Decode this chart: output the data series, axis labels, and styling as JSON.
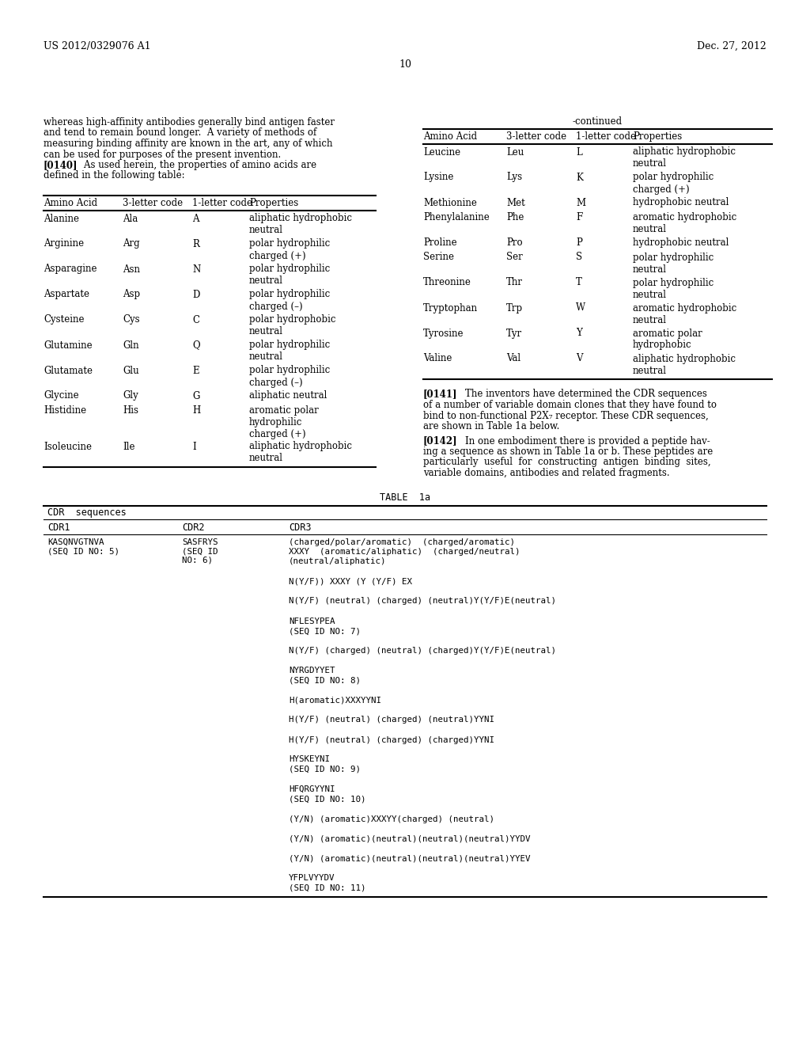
{
  "bg_color": "#ffffff",
  "text_color": "#000000",
  "header_left": "US 2012/0329076 A1",
  "header_right": "Dec. 27, 2012",
  "page_number": "10",
  "left_body_text": [
    "whereas high-affinity antibodies generally bind antigen faster",
    "and tend to remain bound longer.  A variety of methods of",
    "measuring binding affinity are known in the art, any of which",
    "can be used for purposes of the present invention."
  ],
  "left_body_text2": [
    "defined in the following table:"
  ],
  "para140_bold": "[0140]",
  "para140_rest": "    As used herein, the properties of amino acids are",
  "continued_label": "-continued",
  "left_table_headers": [
    "Amino Acid",
    "3-letter code",
    "1-letter code",
    "Properties"
  ],
  "left_table_rows": [
    [
      "Alanine",
      "Ala",
      "A",
      "aliphatic hydrophobic\nneutral"
    ],
    [
      "Arginine",
      "Arg",
      "R",
      "polar hydrophilic\ncharged (+)"
    ],
    [
      "Asparagine",
      "Asn",
      "N",
      "polar hydrophilic\nneutral"
    ],
    [
      "Aspartate",
      "Asp",
      "D",
      "polar hydrophilic\ncharged (–)"
    ],
    [
      "Cysteine",
      "Cys",
      "C",
      "polar hydrophobic\nneutral"
    ],
    [
      "Glutamine",
      "Gln",
      "Q",
      "polar hydrophilic\nneutral"
    ],
    [
      "Glutamate",
      "Glu",
      "E",
      "polar hydrophilic\ncharged (–)"
    ],
    [
      "Glycine",
      "Gly",
      "G",
      "aliphatic neutral"
    ],
    [
      "Histidine",
      "His",
      "H",
      "aromatic polar\nhydrophilic\ncharged (+)"
    ],
    [
      "Isoleucine",
      "Ile",
      "I",
      "aliphatic hydrophobic\nneutral"
    ]
  ],
  "right_table_headers": [
    "Amino Acid",
    "3-letter code",
    "1-letter code",
    "Properties"
  ],
  "right_table_rows": [
    [
      "Leucine",
      "Leu",
      "L",
      "aliphatic hydrophobic\nneutral"
    ],
    [
      "Lysine",
      "Lys",
      "K",
      "polar hydrophilic\ncharged (+)"
    ],
    [
      "Methionine",
      "Met",
      "M",
      "hydrophobic neutral"
    ],
    [
      "Phenylalanine",
      "Phe",
      "F",
      "aromatic hydrophobic\nneutral"
    ],
    [
      "Proline",
      "Pro",
      "P",
      "hydrophobic neutral"
    ],
    [
      "Serine",
      "Ser",
      "S",
      "polar hydrophilic\nneutral"
    ],
    [
      "Threonine",
      "Thr",
      "T",
      "polar hydrophilic\nneutral"
    ],
    [
      "Tryptophan",
      "Trp",
      "W",
      "aromatic hydrophobic\nneutral"
    ],
    [
      "Tyrosine",
      "Tyr",
      "Y",
      "aromatic polar\nhydrophobic"
    ],
    [
      "Valine",
      "Val",
      "V",
      "aliphatic hydrophobic\nneutral"
    ]
  ],
  "para_141_lines": [
    "[0141]    The inventors have determined the CDR sequences",
    "of a number of variable domain clones that they have found to",
    "bind to non-functional P2X₇ receptor. These CDR sequences,",
    "are shown in Table 1a below."
  ],
  "para_142_lines": [
    "[0142]    In one embodiment there is provided a peptide hav-",
    "ing a sequence as shown in Table 1a or b. These peptides are",
    "particularly  useful  for  constructing  antigen  binding  sites,",
    "variable domains, antibodies and related fragments."
  ],
  "table1a_title": "TABLE  1a",
  "table1a_subtitle": "CDR  sequences",
  "table1a_col_headers": [
    "CDR1",
    "CDR2",
    "CDR3"
  ],
  "table1a_row1_cdr1": "KASQNVGTNVA\n(SEQ ID NO: 5)",
  "table1a_row1_cdr2": "SASFRYS\n(SEQ ID\nNO: 6)",
  "table1a_row1_cdr3_lines": [
    "(charged/polar/aromatic)  (charged/aromatic)",
    "XXXY  (aromatic/aliphatic)  (charged/neutral)",
    "(neutral/aliphatic)",
    "",
    "N(Y/F)) XXXY (Y (Y/F) EX",
    "",
    "N(Y/F) (neutral) (charged) (neutral)Y(Y/F)E(neutral)",
    "",
    "NFLESYPEA",
    "(SEQ ID NO: 7)",
    "",
    "N(Y/F) (charged) (neutral) (charged)Y(Y/F)E(neutral)",
    "",
    "NYRGDYYET",
    "(SEQ ID NO: 8)",
    "",
    "H(aromatic)XXXYYNI",
    "",
    "H(Y/F) (neutral) (charged) (neutral)YYNI",
    "",
    "H(Y/F) (neutral) (charged) (charged)YYNI",
    "",
    "HYSKEYNI",
    "(SEQ ID NO: 9)",
    "",
    "HFQRGYYNI",
    "(SEQ ID NO: 10)",
    "",
    "(Y/N) (aromatic)XXXYY(charged) (neutral)",
    "",
    "(Y/N) (aromatic)(neutral)(neutral)(neutral)YYDV",
    "",
    "(Y/N) (aromatic)(neutral)(neutral)(neutral)YYEV",
    "",
    "YFPLVYYDV",
    "(SEQ ID NO: 11)"
  ]
}
